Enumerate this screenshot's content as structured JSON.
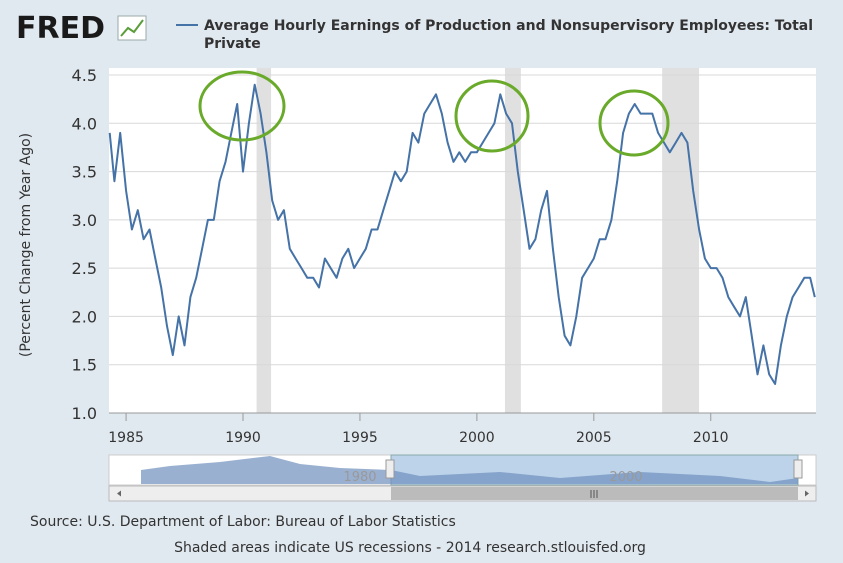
{
  "logo": "FRED",
  "chart_data": {
    "type": "line",
    "y_label": "(Percent Change from Year Ago)",
    "x": [
      1984.3,
      1984.5,
      1984.75,
      1985.0,
      1985.25,
      1985.5,
      1985.75,
      1986.0,
      1986.25,
      1986.5,
      1986.75,
      1987.0,
      1987.25,
      1987.5,
      1987.75,
      1988.0,
      1988.25,
      1988.5,
      1988.75,
      1989.0,
      1989.25,
      1989.5,
      1989.75,
      1990.0,
      1990.25,
      1990.5,
      1990.75,
      1991.0,
      1991.25,
      1991.5,
      1991.75,
      1992.0,
      1992.25,
      1992.5,
      1992.75,
      1993.0,
      1993.25,
      1993.5,
      1993.75,
      1994.0,
      1994.25,
      1994.5,
      1994.75,
      1995.0,
      1995.25,
      1995.5,
      1995.75,
      1996.0,
      1996.25,
      1996.5,
      1996.75,
      1997.0,
      1997.25,
      1997.5,
      1997.75,
      1998.0,
      1998.25,
      1998.5,
      1998.75,
      1999.0,
      1999.25,
      1999.5,
      1999.75,
      2000.0,
      2000.25,
      2000.5,
      2000.75,
      2001.0,
      2001.25,
      2001.5,
      2001.75,
      2002.0,
      2002.25,
      2002.5,
      2002.75,
      2003.0,
      2003.25,
      2003.5,
      2003.75,
      2004.0,
      2004.25,
      2004.5,
      2004.75,
      2005.0,
      2005.25,
      2005.5,
      2005.75,
      2006.0,
      2006.25,
      2006.5,
      2006.75,
      2007.0,
      2007.25,
      2007.5,
      2007.75,
      2008.0,
      2008.25,
      2008.5,
      2008.75,
      2009.0,
      2009.25,
      2009.5,
      2009.75,
      2010.0,
      2010.25,
      2010.5,
      2010.75,
      2011.0,
      2011.25,
      2011.5,
      2011.75,
      2012.0,
      2012.25,
      2012.5,
      2012.75,
      2013.0,
      2013.25,
      2013.5,
      2013.75,
      2014.0,
      2014.25,
      2014.45
    ],
    "series": [
      {
        "name": "Average Hourly Earnings of Production and Nonsupervisory Employees: Total Private",
        "color": "#4572a7",
        "values": [
          3.9,
          3.4,
          3.9,
          3.3,
          2.9,
          3.1,
          2.8,
          2.9,
          2.6,
          2.3,
          1.9,
          1.6,
          2.0,
          1.7,
          2.2,
          2.4,
          2.7,
          3.0,
          3.0,
          3.4,
          3.6,
          3.9,
          4.2,
          3.5,
          4.0,
          4.4,
          4.1,
          3.7,
          3.2,
          3.0,
          3.1,
          2.7,
          2.6,
          2.5,
          2.4,
          2.4,
          2.3,
          2.6,
          2.5,
          2.4,
          2.6,
          2.7,
          2.5,
          2.6,
          2.7,
          2.9,
          2.9,
          3.1,
          3.3,
          3.5,
          3.4,
          3.5,
          3.9,
          3.8,
          4.1,
          4.2,
          4.3,
          4.1,
          3.8,
          3.6,
          3.7,
          3.6,
          3.7,
          3.7,
          3.8,
          3.9,
          4.0,
          4.3,
          4.1,
          4.0,
          3.5,
          3.1,
          2.7,
          2.8,
          3.1,
          3.3,
          2.7,
          2.2,
          1.8,
          1.7,
          2.0,
          2.4,
          2.5,
          2.6,
          2.8,
          2.8,
          3.0,
          3.4,
          3.9,
          4.1,
          4.2,
          4.1,
          4.1,
          4.1,
          3.9,
          3.8,
          3.7,
          3.8,
          3.9,
          3.8,
          3.3,
          2.9,
          2.6,
          2.5,
          2.5,
          2.4,
          2.2,
          2.1,
          2.0,
          2.2,
          1.8,
          1.4,
          1.7,
          1.4,
          1.3,
          1.7,
          2.0,
          2.2,
          2.3,
          2.4,
          2.4,
          2.2
        ]
      }
    ],
    "xlim": [
      1984.27,
      2014.5
    ],
    "ylim": [
      1.0,
      4.5
    ],
    "xticks": [
      1985,
      1990,
      1995,
      2000,
      2005,
      2010
    ],
    "yticks": [
      {
        "value": 1.0,
        "label": "1.0"
      },
      1.5,
      {
        "value": 2.0,
        "label": "2.0"
      },
      2.5,
      {
        "value": 3.0,
        "label": "3.0"
      },
      3.5,
      {
        "value": 4.0,
        "label": "4.0"
      },
      4.5
    ],
    "recessions": [
      {
        "start": 1990.58,
        "end": 1991.2
      },
      {
        "start": 2001.2,
        "end": 2001.88
      },
      {
        "start": 2007.92,
        "end": 2009.5
      }
    ],
    "recession_color": "#e0e0e0"
  },
  "navigator": {
    "labels": [
      "1980",
      "2000"
    ]
  },
  "source": "Source: U.S. Department of Labor: Bureau of Labor Statistics",
  "note": "Shaded areas indicate US recessions - 2014 research.stlouisfed.org"
}
